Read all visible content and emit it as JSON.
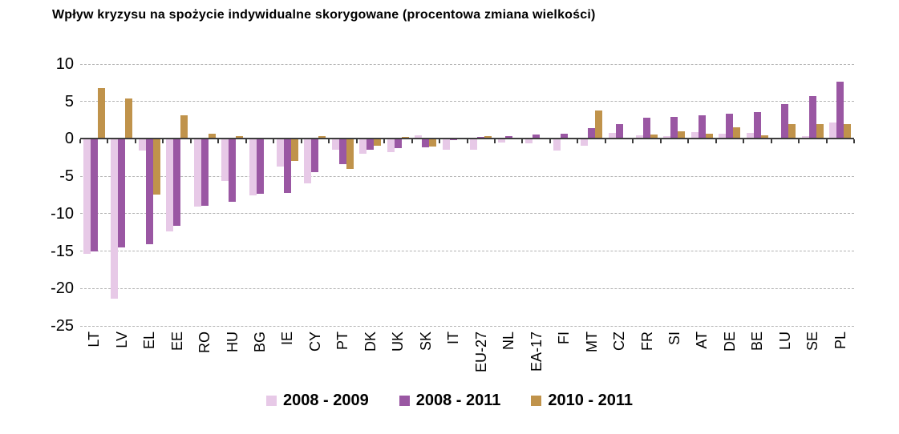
{
  "chart_data": {
    "type": "bar",
    "title": "Wpływ kryzysu na spożycie indywidualne skorygowane (procentowa zmiana wielkości)",
    "xlabel": "",
    "ylabel": "",
    "ylim": [
      -25,
      10
    ],
    "yticks": [
      10,
      5,
      0,
      -5,
      -10,
      -15,
      -20,
      -25
    ],
    "grid": true,
    "legend_position": "bottom",
    "categories": [
      "LT",
      "LV",
      "EL",
      "EE",
      "RO",
      "HU",
      "BG",
      "IE",
      "CY",
      "PT",
      "DK",
      "UK",
      "SK",
      "IT",
      "EU-27",
      "NL",
      "EA-17",
      "FI",
      "MT",
      "CZ",
      "FR",
      "SI",
      "AT",
      "DE",
      "BE",
      "LU",
      "SE",
      "PL"
    ],
    "series": [
      {
        "name": "2008 - 2009",
        "color": "#e7c9e7",
        "values": [
          -15.4,
          -21.4,
          -1.6,
          -12.4,
          -9.0,
          -5.6,
          -7.6,
          -3.7,
          -6.0,
          -1.5,
          -2.0,
          -1.8,
          0.5,
          -1.4,
          -1.5,
          -0.5,
          -0.6,
          -1.6,
          -0.9,
          0.8,
          0.5,
          0.4,
          0.9,
          0.7,
          0.8,
          0.0,
          0.4,
          2.2
        ]
      },
      {
        "name": "2008 - 2011",
        "color": "#9a57a3",
        "values": [
          -15.1,
          -14.5,
          -14.1,
          -11.6,
          -8.9,
          -8.4,
          -7.3,
          -7.2,
          -4.5,
          -3.4,
          -1.5,
          -1.2,
          -1.1,
          -0.2,
          0.3,
          0.4,
          0.6,
          0.7,
          1.4,
          2.0,
          2.8,
          2.9,
          3.1,
          3.4,
          3.6,
          4.7,
          5.7,
          7.6
        ]
      },
      {
        "name": "2010 - 2011",
        "color": "#c0934b",
        "values": [
          6.8,
          5.4,
          -7.5,
          3.1,
          0.7,
          0.4,
          0.2,
          -3.0,
          0.4,
          -4.0,
          -0.9,
          0.3,
          -1.0,
          0.0,
          0.4,
          0.0,
          0.2,
          0.0,
          3.8,
          0.2,
          0.6,
          1.0,
          0.7,
          1.5,
          0.5,
          2.0,
          2.0,
          2.0
        ]
      }
    ],
    "colors": {
      "axis": "#3d3d3d",
      "gridline": "#b3b3b3",
      "text": "#000000",
      "background": "#ffffff"
    }
  }
}
